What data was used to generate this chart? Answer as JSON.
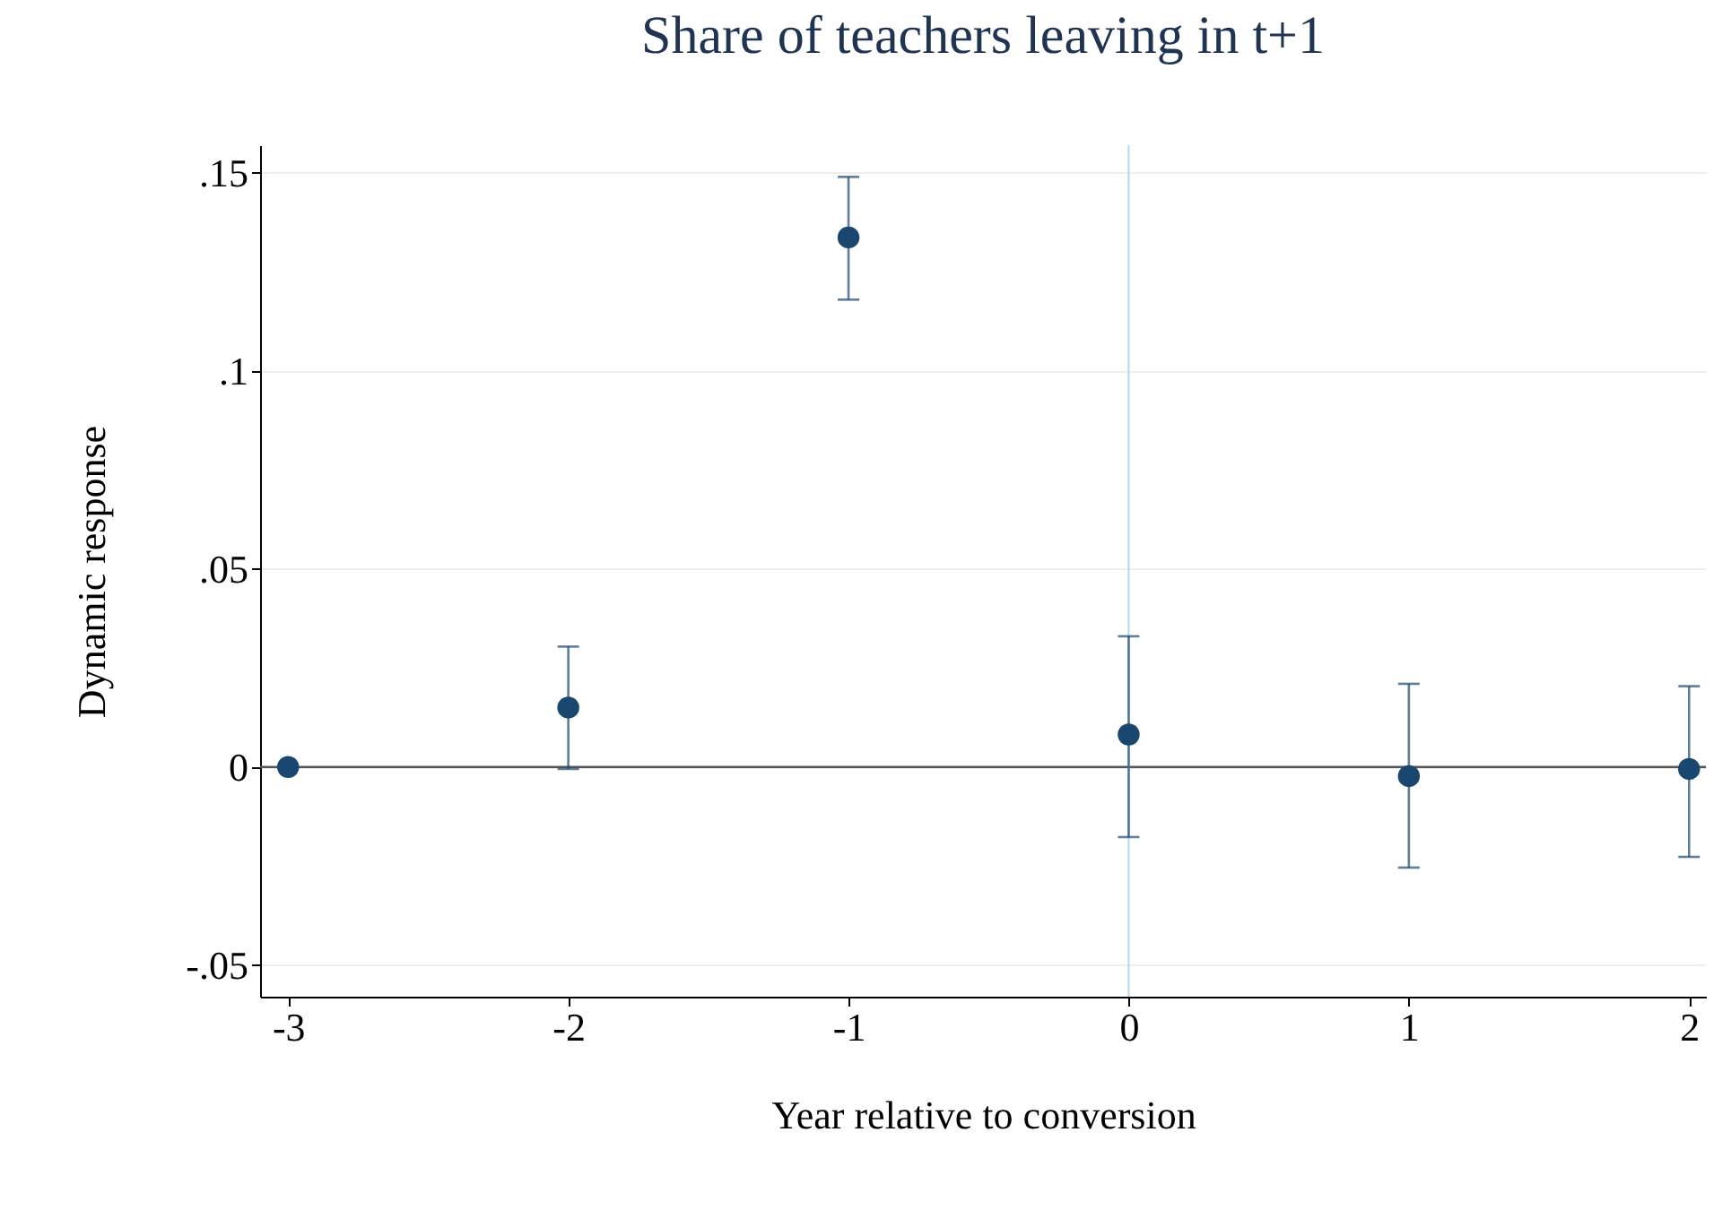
{
  "chart_data": {
    "type": "scatter",
    "title": "Share of teachers leaving in t+1",
    "xlabel": "Year relative to conversion",
    "ylabel": "Dynamic response",
    "x": [
      -3,
      -2,
      -1,
      0,
      1,
      2
    ],
    "series": [
      {
        "color": "#1a476f",
        "values": [
          0,
          0.015,
          0.1337,
          0.0082,
          -0.0023,
          -0.0005
        ],
        "errors": [
          null,
          [
            -0.0005,
            0.0304
          ],
          [
            0.118,
            0.149
          ],
          [
            -0.0177,
            0.033
          ],
          [
            -0.0254,
            0.021
          ],
          [
            -0.0227,
            0.0204
          ]
        ]
      }
    ],
    "xlim": [
      -3.1,
      2.06
    ],
    "xticks": [
      -3,
      -2,
      -1,
      0,
      1,
      2
    ],
    "ylim": [
      -0.058,
      0.157
    ],
    "yticks": [
      {
        "value": -0.05,
        "label": "-.05"
      },
      0,
      {
        "value": 0.05,
        "label": ".05"
      },
      {
        "value": 0.1,
        "label": ".1"
      },
      {
        "value": 0.15,
        "label": ".15"
      }
    ],
    "ref_lines": [
      {
        "axis": "y",
        "value": 0,
        "color": "#555555"
      },
      {
        "axis": "x",
        "value": 0,
        "color": "#b5d7ea"
      }
    ],
    "grid": "y",
    "marker": "circle"
  }
}
